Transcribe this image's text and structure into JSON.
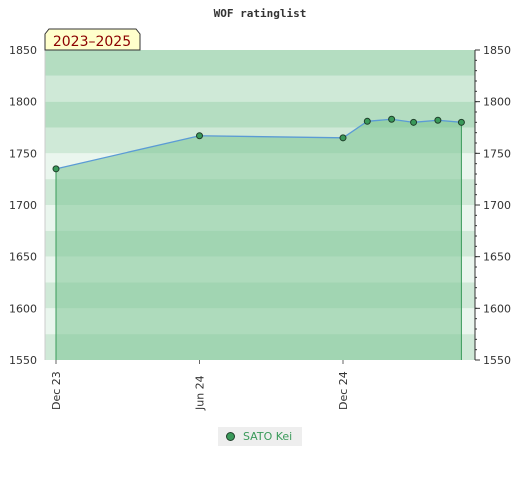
{
  "chart_data": {
    "type": "line",
    "title": "WOF ratinglist",
    "period_badge": "2023–2025",
    "ylim": [
      1550,
      1850
    ],
    "yticks": [
      1550,
      1600,
      1650,
      1700,
      1750,
      1800,
      1850
    ],
    "xticks": [
      "Dec 23",
      "Jun 24",
      "Dec 24"
    ],
    "series": [
      {
        "name": "SATO Kei",
        "color": "#3a9a5a",
        "points": [
          {
            "date": "2023-12",
            "rating": 1735
          },
          {
            "date": "2024-06",
            "rating": 1767
          },
          {
            "date": "2024-12",
            "rating": 1765
          },
          {
            "date": "2025-01",
            "rating": 1781
          },
          {
            "date": "2025-02",
            "rating": 1783
          },
          {
            "date": "2025-03",
            "rating": 1780
          },
          {
            "date": "2025-04",
            "rating": 1782
          },
          {
            "date": "2025-05",
            "rating": 1780
          }
        ]
      }
    ],
    "legend": {
      "position": "bottom-center"
    },
    "colors": {
      "line": "#5b9bd5",
      "area": "#7cc494",
      "band_light": "#eaf6ee",
      "band_mid": "#cfe9d7",
      "band_dark": "#b4ddc1"
    }
  }
}
